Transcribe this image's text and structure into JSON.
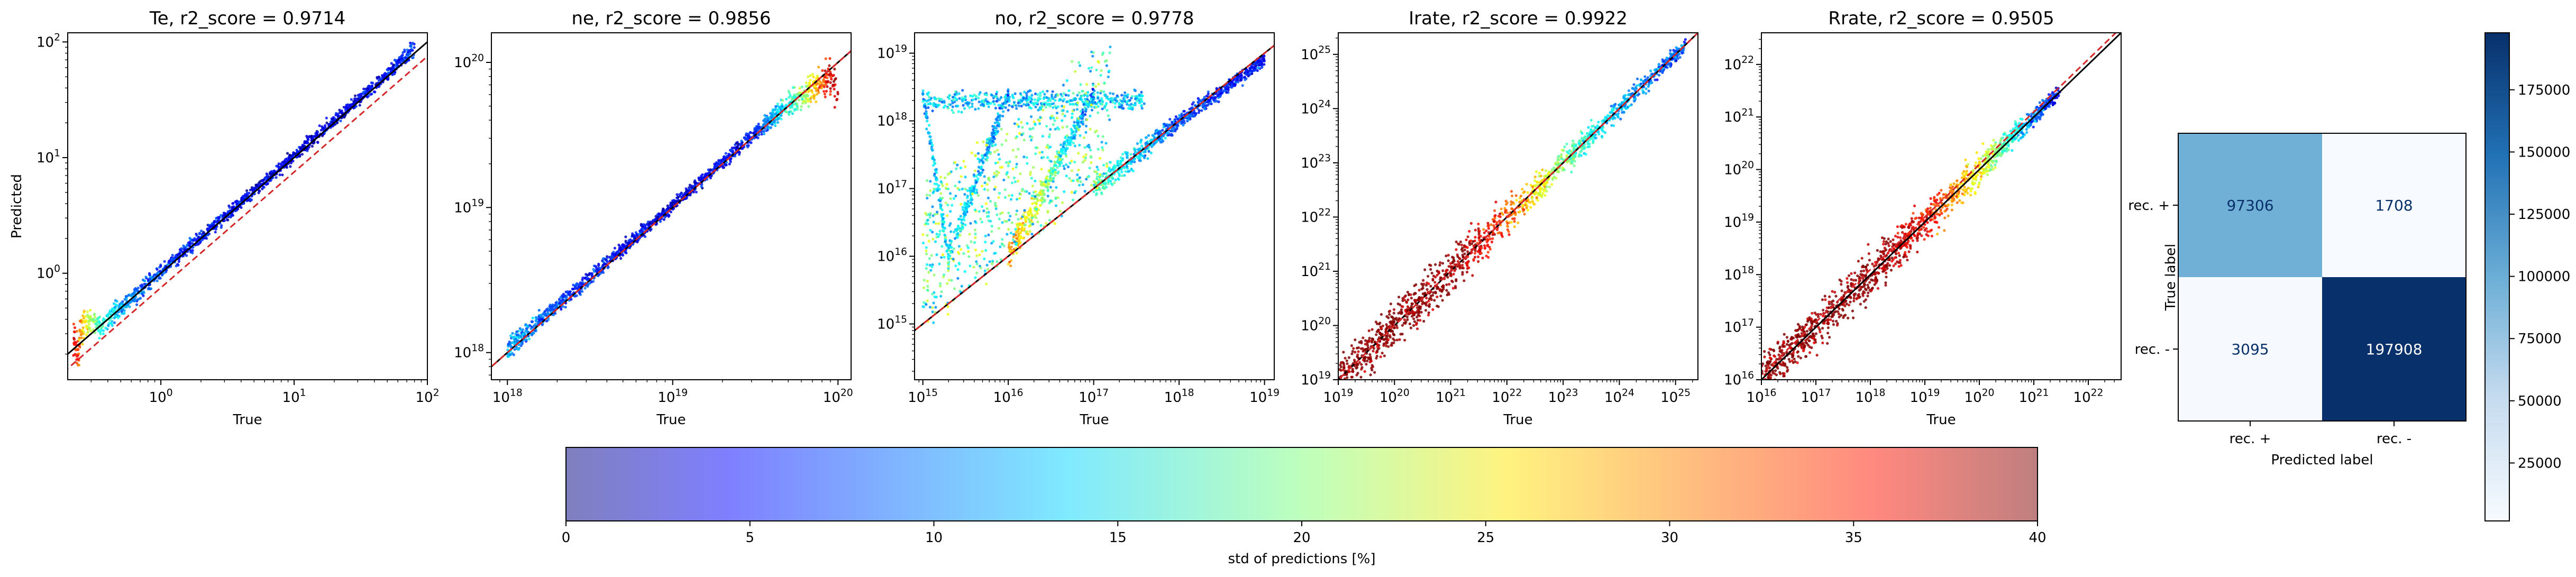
{
  "chart_data": [
    {
      "type": "scatter",
      "title": "Te, r2_score = 0.9714",
      "xlabel": "True",
      "ylabel": "Predicted",
      "scale": "log",
      "xlim": [
        0.2,
        100
      ],
      "ylim": [
        0.12,
        120
      ],
      "x_ticks": [
        {
          "v": 1,
          "label": "10^0"
        },
        {
          "v": 10,
          "label": "10^1"
        },
        {
          "v": 100,
          "label": "10^2"
        }
      ],
      "y_ticks": [
        {
          "v": 1,
          "label": "10^0"
        },
        {
          "v": 10,
          "label": "10^1"
        },
        {
          "v": 100,
          "label": "10^2"
        }
      ],
      "points_sample": [
        {
          "x": 0.22,
          "y": 0.3,
          "std": 34
        },
        {
          "x": 0.25,
          "y": 0.32,
          "std": 28
        },
        {
          "x": 0.24,
          "y": 0.2,
          "std": 33
        },
        {
          "x": 0.3,
          "y": 0.4,
          "std": 22
        },
        {
          "x": 0.35,
          "y": 0.33,
          "std": 17
        },
        {
          "x": 0.5,
          "y": 0.5,
          "std": 12
        },
        {
          "x": 0.8,
          "y": 0.82,
          "std": 8
        },
        {
          "x": 1.5,
          "y": 1.55,
          "std": 6
        },
        {
          "x": 3,
          "y": 3.1,
          "std": 5
        },
        {
          "x": 8,
          "y": 8.3,
          "std": 4
        },
        {
          "x": 20,
          "y": 21,
          "std": 4
        },
        {
          "x": 50,
          "y": 52,
          "std": 5
        },
        {
          "x": 80,
          "y": 90,
          "std": 8
        }
      ],
      "identity_line": true,
      "offset_line": {
        "slope": 1,
        "factor": 0.75,
        "color": "#d62728",
        "style": "dashed"
      }
    },
    {
      "type": "scatter",
      "title": "ne, r2_score = 0.9856",
      "xlabel": "True",
      "ylabel": "",
      "scale": "log",
      "xlim": [
        8e+17,
        1.2e+20
      ],
      "ylim": [
        6.5e+17,
        1.6e+20
      ],
      "x_ticks": [
        {
          "v": 1e+18,
          "label": "10^18"
        },
        {
          "v": 1e+19,
          "label": "10^19"
        },
        {
          "v": 1e+20,
          "label": "10^20"
        }
      ],
      "y_ticks": [
        {
          "v": 1e+18,
          "label": "10^18"
        },
        {
          "v": 1e+19,
          "label": "10^19"
        },
        {
          "v": 1e+20,
          "label": "10^20"
        }
      ],
      "points_sample": [
        {
          "x": 1e+18,
          "y": 1.05e+18,
          "std": 12
        },
        {
          "x": 2e+18,
          "y": 2.1e+18,
          "std": 8
        },
        {
          "x": 5e+18,
          "y": 5.2e+18,
          "std": 5
        },
        {
          "x": 1e+19,
          "y": 1.02e+19,
          "std": 4
        },
        {
          "x": 3e+19,
          "y": 3.1e+19,
          "std": 6
        },
        {
          "x": 6e+19,
          "y": 6e+19,
          "std": 20
        },
        {
          "x": 9e+19,
          "y": 8e+19,
          "std": 36
        },
        {
          "x": 1e+20,
          "y": 6e+19,
          "std": 38
        }
      ],
      "identity_line": true,
      "offset_line": {
        "slope": 1,
        "factor": 1.0,
        "color": "#d62728",
        "style": "dashed"
      }
    },
    {
      "type": "scatter",
      "title": "no, r2_score = 0.9778",
      "xlabel": "True",
      "ylabel": "",
      "scale": "log",
      "xlim": [
        800000000000000.0,
        1.3e+19
      ],
      "ylim": [
        150000000000000.0,
        2e+19
      ],
      "x_ticks": [
        {
          "v": 1000000000000000.0,
          "label": "10^15"
        },
        {
          "v": 1e+16,
          "label": "10^16"
        },
        {
          "v": 1e+17,
          "label": "10^17"
        },
        {
          "v": 1e+18,
          "label": "10^18"
        },
        {
          "v": 1e+19,
          "label": "10^19"
        }
      ],
      "y_ticks": [
        {
          "v": 1000000000000000.0,
          "label": "10^15"
        },
        {
          "v": 1e+16,
          "label": "10^16"
        },
        {
          "v": 1e+17,
          "label": "10^17"
        },
        {
          "v": 1e+18,
          "label": "10^18"
        },
        {
          "v": 1e+19,
          "label": "10^19"
        }
      ],
      "points_sample": [
        {
          "x": 1000000000000000.0,
          "y": 1000000000000000.0,
          "std": 38
        },
        {
          "x": 1000000000000000.0,
          "y": 2.5e+18,
          "std": 12
        },
        {
          "x": 1e+16,
          "y": 2.5e+18,
          "std": 10
        },
        {
          "x": 1e+17,
          "y": 2.5e+18,
          "std": 8
        },
        {
          "x": 2000000000000000.0,
          "y": 1e+16,
          "std": 15
        },
        {
          "x": 1e+16,
          "y": 1e+16,
          "std": 30
        },
        {
          "x": 1e+17,
          "y": 1e+17,
          "std": 18
        },
        {
          "x": 1e+18,
          "y": 1e+18,
          "std": 8
        },
        {
          "x": 1e+19,
          "y": 8e+18,
          "std": 5
        }
      ],
      "identity_line": true,
      "offset_line": {
        "slope": 1,
        "factor": 1.0,
        "color": "#d62728",
        "style": "dashed"
      }
    },
    {
      "type": "scatter",
      "title": "Irate, r2_score = 0.9922",
      "xlabel": "True",
      "ylabel": "",
      "scale": "log",
      "xlim": [
        1e+19,
        2.5e+25
      ],
      "ylim": [
        1e+19,
        2.5e+25
      ],
      "x_ticks": [
        {
          "v": 1e+19,
          "label": "10^19"
        },
        {
          "v": 1e+20,
          "label": "10^20"
        },
        {
          "v": 1e+21,
          "label": "10^21"
        },
        {
          "v": 1e+22,
          "label": "10^22"
        },
        {
          "v": 1e+23,
          "label": "10^23"
        },
        {
          "v": 1e+24,
          "label": "10^24"
        },
        {
          "v": 1e+25,
          "label": "10^25"
        }
      ],
      "y_ticks": [
        {
          "v": 1e+19,
          "label": "10^19"
        },
        {
          "v": 1e+20,
          "label": "10^20"
        },
        {
          "v": 1e+21,
          "label": "10^21"
        },
        {
          "v": 1e+22,
          "label": "10^22"
        },
        {
          "v": 1e+23,
          "label": "10^23"
        },
        {
          "v": 1e+24,
          "label": "10^24"
        },
        {
          "v": 1e+25,
          "label": "10^25"
        }
      ],
      "points_sample": [
        {
          "x": 1e+19,
          "y": 1e+19,
          "std": 40
        },
        {
          "x": 1e+20,
          "y": 1e+20,
          "std": 40
        },
        {
          "x": 1e+21,
          "y": 1e+21,
          "std": 40
        },
        {
          "x": 1e+22,
          "y": 1e+22,
          "std": 32
        },
        {
          "x": 1e+23,
          "y": 1e+23,
          "std": 20
        },
        {
          "x": 1e+24,
          "y": 1e+24,
          "std": 12
        },
        {
          "x": 1.5e+25,
          "y": 1.5e+25,
          "std": 8
        }
      ],
      "identity_line": true,
      "offset_line": {
        "slope": 1,
        "factor": 1.0,
        "color": "#d62728",
        "style": "dashed"
      }
    },
    {
      "type": "scatter",
      "title": "Rrate, r2_score = 0.9505",
      "xlabel": "True",
      "ylabel": "",
      "scale": "log",
      "xlim": [
        1e+16,
        4e+22
      ],
      "ylim": [
        1e+16,
        4e+22
      ],
      "x_ticks": [
        {
          "v": 1e+16,
          "label": "10^16"
        },
        {
          "v": 1e+17,
          "label": "10^17"
        },
        {
          "v": 1e+18,
          "label": "10^18"
        },
        {
          "v": 1e+19,
          "label": "10^19"
        },
        {
          "v": 1e+20,
          "label": "10^20"
        },
        {
          "v": 1e+21,
          "label": "10^21"
        },
        {
          "v": 1e+22,
          "label": "10^22"
        }
      ],
      "y_ticks": [
        {
          "v": 1e+16,
          "label": "10^16"
        },
        {
          "v": 1e+17,
          "label": "10^17"
        },
        {
          "v": 1e+18,
          "label": "10^18"
        },
        {
          "v": 1e+19,
          "label": "10^19"
        },
        {
          "v": 1e+20,
          "label": "10^20"
        },
        {
          "v": 1e+21,
          "label": "10^21"
        },
        {
          "v": 1e+22,
          "label": "10^22"
        }
      ],
      "points_sample": [
        {
          "x": 1e+16,
          "y": 1e+16,
          "std": 40
        },
        {
          "x": 1e+17,
          "y": 1e+17,
          "std": 40
        },
        {
          "x": 1e+18,
          "y": 1e+18,
          "std": 40
        },
        {
          "x": 1e+19,
          "y": 1e+19,
          "std": 35
        },
        {
          "x": 1e+20,
          "y": 1e+20,
          "std": 25
        },
        {
          "x": 1e+21,
          "y": 1e+21,
          "std": 10
        },
        {
          "x": 3e+21,
          "y": 3e+21,
          "std": 5
        }
      ],
      "identity_line": true,
      "offset_line": {
        "slope": 1,
        "factor": 1.25,
        "color": "#d62728",
        "style": "dashed"
      }
    },
    {
      "type": "heatmap",
      "title": "",
      "xlabel": "Predicted label",
      "ylabel": "True label",
      "x_categories": [
        "rec. +",
        "rec. -"
      ],
      "y_categories": [
        "rec. +",
        "rec. -"
      ],
      "matrix": [
        [
          97306,
          1708
        ],
        [
          3095,
          197908
        ]
      ],
      "colormap": "Blues",
      "colorbar": {
        "min": 1708,
        "max": 197908,
        "ticks": [
          25000,
          50000,
          75000,
          100000,
          125000,
          150000,
          175000
        ]
      }
    }
  ],
  "colorbar_std": {
    "label": "std of predictions [%]",
    "min": 0,
    "max": 40,
    "ticks": [
      0,
      5,
      10,
      15,
      20,
      25,
      30,
      35,
      40
    ],
    "colormap": "jet",
    "alpha": 0.5
  },
  "colors": {
    "identity_line": "#000000",
    "offset_line": "#d62728"
  }
}
